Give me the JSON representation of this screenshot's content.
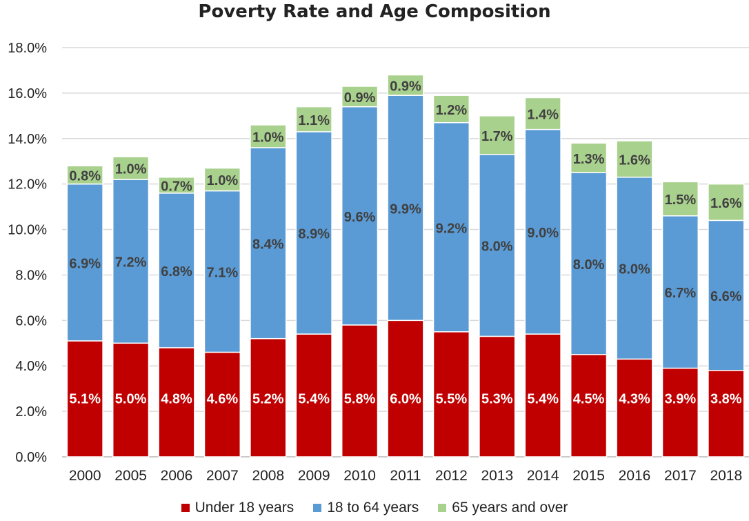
{
  "chart_data": {
    "type": "bar",
    "stacked": true,
    "title": "Poverty Rate and Age Composition",
    "xlabel": "",
    "ylabel": "",
    "ylim": [
      0,
      18
    ],
    "y_tick_labels": [
      "0.0%",
      "2.0%",
      "4.0%",
      "6.0%",
      "8.0%",
      "10.0%",
      "12.0%",
      "14.0%",
      "16.0%",
      "18.0%"
    ],
    "y_ticks": [
      0,
      2,
      4,
      6,
      8,
      10,
      12,
      14,
      16,
      18
    ],
    "grid": "horizontal",
    "legend_position": "bottom",
    "categories": [
      "2000",
      "2005",
      "2006",
      "2007",
      "2008",
      "2009",
      "2010",
      "2011",
      "2012",
      "2013",
      "2014",
      "2015",
      "2016",
      "2017",
      "2018"
    ],
    "series": [
      {
        "name": "Under 18 years",
        "color": "#c00000",
        "values": [
          5.1,
          5.0,
          4.8,
          4.6,
          5.2,
          5.4,
          5.8,
          6.0,
          5.5,
          5.3,
          5.4,
          4.5,
          4.3,
          3.9,
          3.8
        ],
        "labels": [
          "5.1%",
          "5.0%",
          "4.8%",
          "4.6%",
          "5.2%",
          "5.4%",
          "5.8%",
          "6.0%",
          "5.5%",
          "5.3%",
          "5.4%",
          "4.5%",
          "4.3%",
          "3.9%",
          "3.8%"
        ]
      },
      {
        "name": "18 to 64 years",
        "color": "#5b9bd5",
        "values": [
          6.9,
          7.2,
          6.8,
          7.1,
          8.4,
          8.9,
          9.6,
          9.9,
          9.2,
          8.0,
          9.0,
          8.0,
          8.0,
          6.7,
          6.6
        ],
        "labels": [
          "6.9%",
          "7.2%",
          "6.8%",
          "7.1%",
          "8.4%",
          "8.9%",
          "9.6%",
          "9.9%",
          "9.2%",
          "8.0%",
          "9.0%",
          "8.0%",
          "8.0%",
          "6.7%",
          "6.6%"
        ]
      },
      {
        "name": "65 years and over",
        "color": "#a9d18e",
        "values": [
          0.8,
          1.0,
          0.7,
          1.0,
          1.0,
          1.1,
          0.9,
          0.9,
          1.2,
          1.7,
          1.4,
          1.3,
          1.6,
          1.5,
          1.6
        ],
        "labels": [
          "0.8%",
          "1.0%",
          "0.7%",
          "1.0%",
          "1.0%",
          "1.1%",
          "0.9%",
          "0.9%",
          "1.2%",
          "1.7%",
          "1.4%",
          "1.3%",
          "1.6%",
          "1.5%",
          "1.6%"
        ]
      }
    ]
  }
}
